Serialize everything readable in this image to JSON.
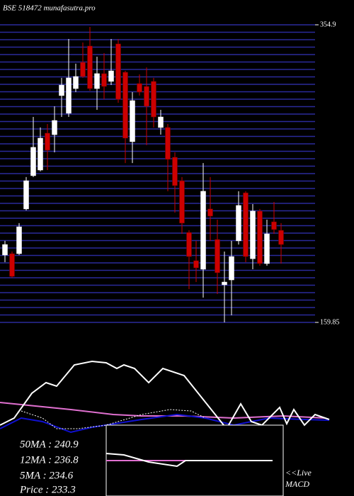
{
  "chart_data": {
    "type": "candlestick",
    "title": "BSE 518472 munafasutra.pro",
    "open": [
      204.0,
      204.9,
      204.9,
      234.2,
      256.0,
      259.7,
      283.9,
      282.9,
      308.5,
      296.9,
      313.1,
      330.3,
      341.0,
      313.1,
      322.9,
      317.8,
      342.4,
      323.8,
      278.3,
      316.4,
      314.5,
      317.8,
      287.6,
      287.6,
      268.1,
      252.7,
      218.8,
      200.3,
      194.7,
      234.2,
      214.2,
      184.5,
      187.7,
      213.3,
      244.8,
      201.6,
      232.8,
      198.4,
      225.8,
      220.2
    ],
    "high": [
      213.3,
      206.3,
      224.9,
      255.1,
      294.5,
      287.6,
      289.9,
      301.5,
      320.1,
      345.6,
      329.4,
      343.3,
      353.5,
      334.0,
      336.3,
      345.6,
      345.6,
      324.7,
      310.8,
      322.4,
      327.0,
      320.1,
      299.2,
      289.9,
      271.3,
      255.1,
      220.2,
      213.3,
      264.3,
      255.1,
      227.2,
      206.3,
      213.3,
      245.8,
      245.8,
      237.4,
      234.2,
      227.2,
      238.8,
      224.9
    ],
    "low": [
      199.3,
      189.1,
      204.0,
      233.2,
      255.1,
      258.8,
      259.7,
      271.3,
      294.5,
      294.5,
      310.8,
      320.1,
      311.7,
      299.2,
      306.1,
      315.4,
      303.8,
      264.3,
      264.3,
      308.5,
      276.0,
      287.6,
      282.9,
      245.8,
      231.8,
      217.9,
      181.7,
      186.3,
      176.1,
      213.3,
      178.4,
      159.85,
      164.5,
      210.9,
      199.3,
      194.7,
      197.0,
      197.0,
      217.9,
      198.4
    ],
    "close": [
      210.9,
      190.0,
      222.5,
      252.7,
      274.6,
      280.6,
      272.7,
      292.2,
      315.4,
      320.1,
      321.0,
      321.0,
      313.1,
      322.9,
      314.5,
      324.7,
      306.1,
      280.6,
      305.2,
      310.8,
      301.5,
      294.5,
      294.5,
      266.7,
      249.5,
      224.9,
      203.0,
      195.6,
      245.8,
      229.5,
      192.4,
      186.3,
      203.0,
      236.5,
      203.0,
      232.8,
      198.4,
      217.9,
      220.7,
      210.9
    ],
    "up_color": "#ffffff",
    "down_color": "#cc0000",
    "ylim": [
      159.85,
      354.9
    ],
    "yticks": [
      354.9,
      159.85
    ]
  },
  "legend": {
    "lines": [
      "50MA : 240.9",
      "12MA : 236.8",
      "5MA : 234.6",
      "Price  : 233.3"
    ],
    "live": "<<Live",
    "macd": "MACD"
  }
}
